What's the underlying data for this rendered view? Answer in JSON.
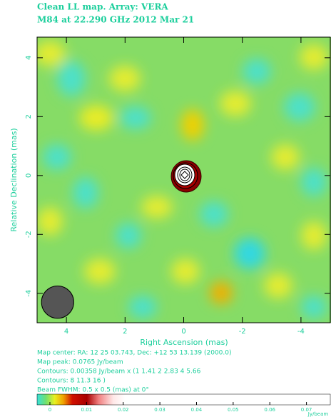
{
  "chart_data": {
    "type": "image",
    "title": "Clean LL map.  Array:  VERA",
    "subtitle": "M84 at 22.290 GHz 2012 Mar 21",
    "x_label": "Right Ascension  (mas)",
    "y_label": "Relative Declination  (mas)",
    "xlim": [
      5,
      -5
    ],
    "ylim": [
      -5,
      4.7
    ],
    "xticks": [
      4,
      2,
      0,
      -2,
      -4
    ],
    "yticks": [
      -4,
      -2,
      0,
      2,
      4
    ],
    "beam": {
      "x": 4.3,
      "y": -4.3,
      "size": 0.5
    },
    "info": [
      "Map center:  RA: 12 25 03.743,  Dec: +12 53 13.139 (2000.0)",
      "Map peak: 0.0765 Jy/beam",
      "Contours: 0.00358 Jy/beam x (1 1.41 2 2.83 4 5.66",
      "Contours: 8 11.3 16 )",
      "Beam FWHM: 0.5 x 0.5 (mas) at 0°"
    ],
    "colorbar": {
      "lim": [
        -0.0035,
        0.0765
      ],
      "ticks": [
        0,
        0.01,
        0.02,
        0.03,
        0.04,
        0.05,
        0.06,
        0.07
      ],
      "label": "Jy/beam"
    }
  }
}
